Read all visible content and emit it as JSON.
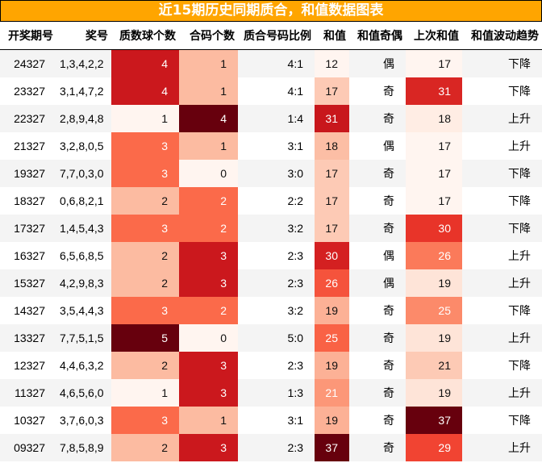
{
  "title": "近15期历史同期质合，和值数据图表",
  "chart_data": {
    "type": "table",
    "colormap": "Reds",
    "heatmap_columns": [
      2,
      3,
      5,
      7
    ],
    "columns": [
      "开奖期号",
      "奖号",
      "质数球个数",
      "合码个数",
      "质合号码比例",
      "和值",
      "和值奇偶",
      "上次和值",
      "和值波动趋势"
    ],
    "rows": [
      [
        "24327",
        "1,3,4,2,2",
        4,
        1,
        "4:1",
        12,
        "偶",
        17,
        "下降"
      ],
      [
        "23327",
        "3,1,4,7,2",
        4,
        1,
        "4:1",
        17,
        "奇",
        31,
        "下降"
      ],
      [
        "22327",
        "2,8,9,4,8",
        1,
        4,
        "1:4",
        31,
        "奇",
        18,
        "上升"
      ],
      [
        "21327",
        "3,2,8,0,5",
        3,
        1,
        "3:1",
        18,
        "偶",
        17,
        "上升"
      ],
      [
        "19327",
        "7,7,0,3,0",
        3,
        0,
        "3:0",
        17,
        "奇",
        17,
        "下降"
      ],
      [
        "18327",
        "0,6,8,2,1",
        2,
        2,
        "2:2",
        17,
        "奇",
        17,
        "下降"
      ],
      [
        "17327",
        "1,4,5,4,3",
        3,
        2,
        "3:2",
        17,
        "奇",
        30,
        "下降"
      ],
      [
        "16327",
        "6,5,6,8,5",
        2,
        3,
        "2:3",
        30,
        "偶",
        26,
        "上升"
      ],
      [
        "15327",
        "4,2,9,8,3",
        2,
        3,
        "2:3",
        26,
        "偶",
        19,
        "上升"
      ],
      [
        "14327",
        "3,5,4,4,3",
        3,
        2,
        "3:2",
        19,
        "奇",
        25,
        "下降"
      ],
      [
        "13327",
        "7,7,5,1,5",
        5,
        0,
        "5:0",
        25,
        "奇",
        19,
        "上升"
      ],
      [
        "12327",
        "4,4,6,3,2",
        2,
        3,
        "2:3",
        19,
        "奇",
        21,
        "下降"
      ],
      [
        "11327",
        "4,6,5,6,0",
        1,
        3,
        "1:3",
        21,
        "奇",
        19,
        "上升"
      ],
      [
        "10327",
        "3,7,6,0,3",
        3,
        1,
        "3:1",
        19,
        "奇",
        37,
        "下降"
      ],
      [
        "09327",
        "7,8,5,8,9",
        2,
        3,
        "2:3",
        37,
        "奇",
        29,
        "上升"
      ]
    ]
  }
}
